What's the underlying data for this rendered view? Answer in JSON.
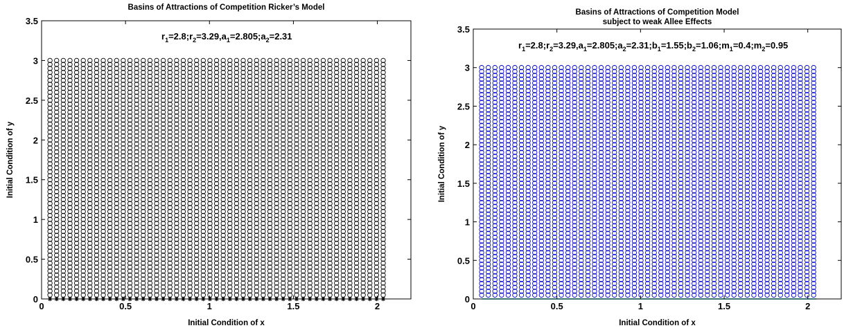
{
  "chart_data": [
    {
      "type": "scatter",
      "title": "Basins of Attractions of Competition Ricker’s Model",
      "subtitle": "",
      "xlabel": "Initial Condition of x",
      "ylabel": "Initial Condition of y",
      "xlim": [
        0,
        2.2
      ],
      "ylim": [
        0,
        3.5
      ],
      "xticks": [
        "0",
        "0.5",
        "1",
        "1.5",
        "2"
      ],
      "yticks": [
        "0",
        "0.5",
        "1",
        "1.5",
        "2",
        "2.5",
        "3",
        "3.5"
      ],
      "grid": false,
      "annotation": {
        "parts": [
          {
            "t": "r"
          },
          {
            "t": "1",
            "sub": true
          },
          {
            "t": "=2.8;r"
          },
          {
            "t": "2",
            "sub": true
          },
          {
            "t": "=3.29,a"
          },
          {
            "t": "1",
            "sub": true
          },
          {
            "t": "=2.805;a"
          },
          {
            "t": "2",
            "sub": true
          },
          {
            "t": "=2.31"
          }
        ]
      },
      "grid_points": {
        "x_start": 0.05,
        "x_step": 0.0397,
        "x_count": 51,
        "y_start": 0.05,
        "y_step": 0.05,
        "y_count": 60
      },
      "series": [
        {
          "marker": "circle",
          "color": "#000000",
          "description_of_points": "every grid point with y > 0"
        },
        {
          "marker": "star",
          "color": "#000000",
          "description_of_points": "grid points on y = 0"
        }
      ]
    },
    {
      "type": "scatter",
      "title": "Basins of Attractions of Competition Model",
      "subtitle": "subject to weak Allee Effects",
      "xlabel": "Initial Condition of x",
      "ylabel": "Initial Condition of y",
      "xlim": [
        0,
        2.2
      ],
      "ylim": [
        0,
        3.5
      ],
      "xticks": [
        "0",
        "0.5",
        "1",
        "1.5",
        "2"
      ],
      "yticks": [
        "0",
        "0.5",
        "1",
        "1.5",
        "2",
        "2.5",
        "3",
        "3.5"
      ],
      "grid": false,
      "annotation": {
        "parts": [
          {
            "t": "r"
          },
          {
            "t": "1",
            "sub": true
          },
          {
            "t": "=2.8;r"
          },
          {
            "t": "2",
            "sub": true
          },
          {
            "t": "=3.29,a"
          },
          {
            "t": "1",
            "sub": true
          },
          {
            "t": "=2.805;a"
          },
          {
            "t": "2",
            "sub": true
          },
          {
            "t": "=2.31;b"
          },
          {
            "t": "1",
            "sub": true
          },
          {
            "t": "=1.55;b"
          },
          {
            "t": "2",
            "sub": true
          },
          {
            "t": "=1.06;m"
          },
          {
            "t": "1",
            "sub": true
          },
          {
            "t": "=0.4;m"
          },
          {
            "t": "2",
            "sub": true
          },
          {
            "t": "=0.95"
          }
        ]
      },
      "grid_points": {
        "x_start": 0.05,
        "x_step": 0.0397,
        "x_count": 51,
        "y_start": 0.05,
        "y_step": 0.05,
        "y_count": 60
      },
      "series": [
        {
          "marker": "circle",
          "color": "#0000cc",
          "description_of_points": "every grid point with y > 0"
        },
        {
          "marker": "line",
          "color": "#00cccc",
          "description_of_points": "points along y = 0"
        }
      ]
    }
  ]
}
